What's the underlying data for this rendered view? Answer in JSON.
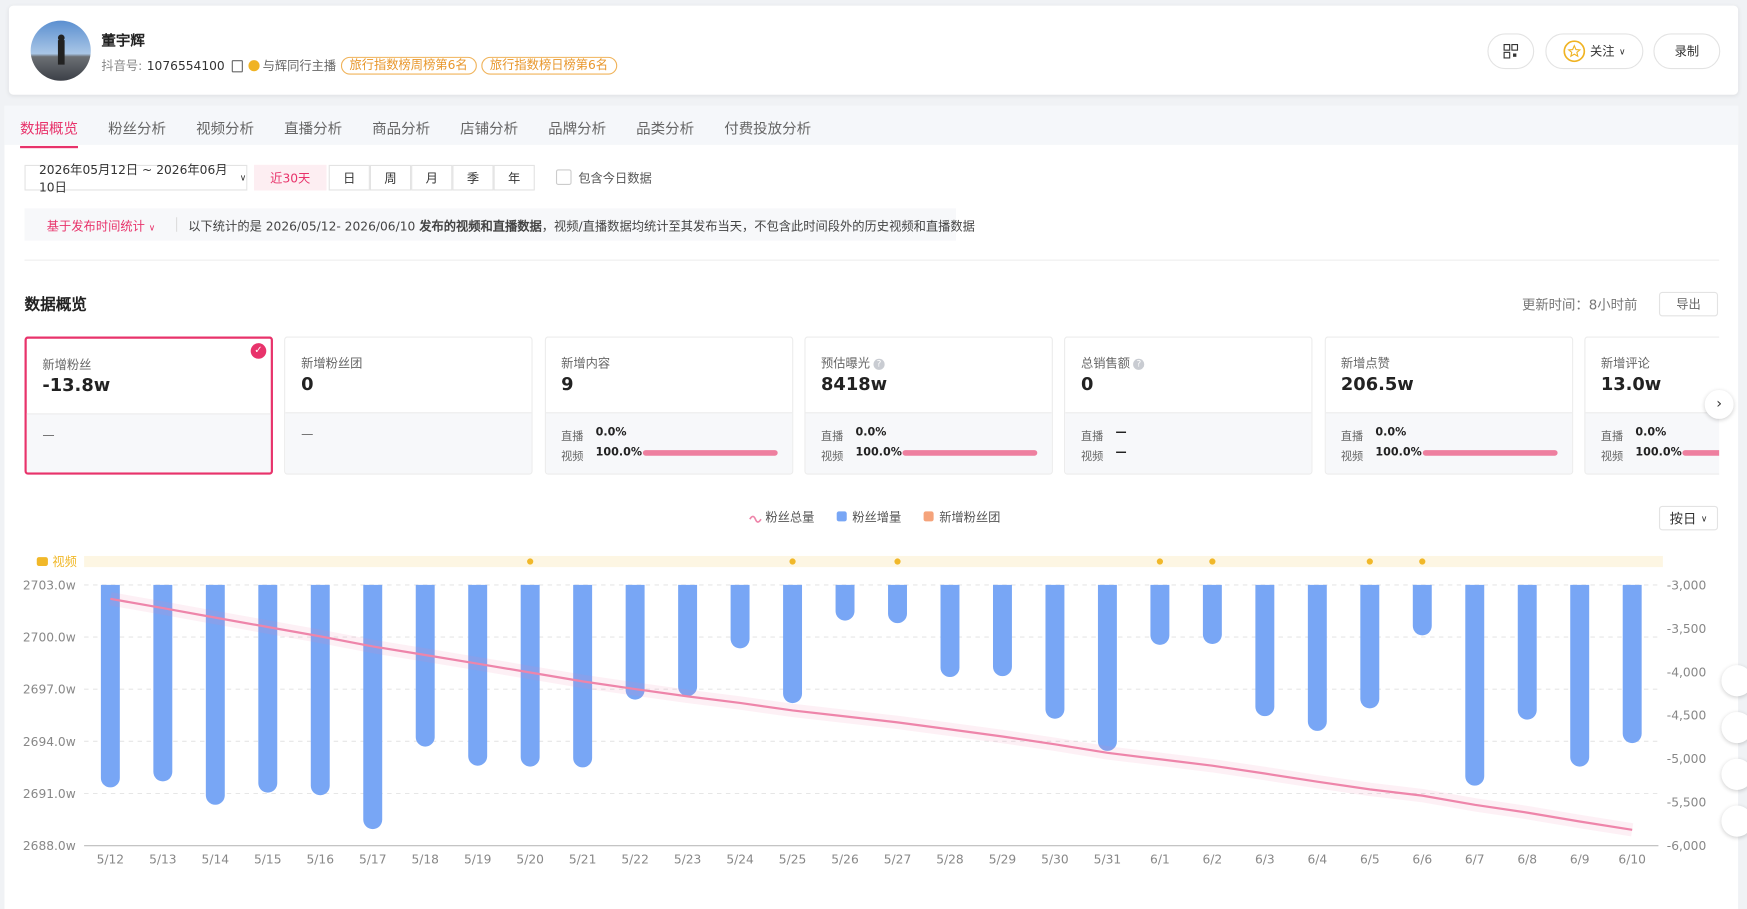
{
  "profile": {
    "name": "董宇辉",
    "id_label": "抖音号:",
    "id": "1076554100",
    "relation": "与辉同行主播",
    "badges": [
      "旅行指数榜周榜第6名",
      "旅行指数榜日榜第6名"
    ]
  },
  "actions": {
    "follow": "关注",
    "record": "录制"
  },
  "tabs": [
    "数据概览",
    "粉丝分析",
    "视频分析",
    "直播分析",
    "商品分析",
    "店铺分析",
    "品牌分析",
    "品类分析",
    "付费投放分析"
  ],
  "filters": {
    "date_range": "2026年05月12日 ~ 2026年06月10日",
    "presets": [
      "近30天",
      "日",
      "周",
      "月",
      "季",
      "年"
    ],
    "include_today": "包含今日数据"
  },
  "notice": {
    "mode": "基于发布时间统计",
    "text_pre": "以下统计的是  2026/05/12- 2026/06/10 ",
    "text_bold": "发布的视频和直播数据",
    "text_post": "，视频/直播数据均统计至其发布当天，不包含此时间段外的历史视频和直播数据"
  },
  "section": {
    "title": "数据概览",
    "update_label": "更新时间：8小时前",
    "export": "导出"
  },
  "cards": [
    {
      "label": "新增粉丝",
      "value": "-13.8w",
      "detail": "—"
    },
    {
      "label": "新增粉丝团",
      "value": "0",
      "detail": "—"
    },
    {
      "label": "新增内容",
      "value": "9",
      "rows": [
        {
          "label": "直播",
          "value": 0,
          "value_label": "0.0%"
        },
        {
          "label": "视频",
          "value": 100,
          "value_label": "100.0%"
        }
      ]
    },
    {
      "label": "预估曝光",
      "value": "8418w",
      "has_help": true,
      "rows": [
        {
          "label": "直播",
          "value": 0,
          "value_label": "0.0%"
        },
        {
          "label": "视频",
          "value": 100,
          "value_label": "100.0%"
        }
      ]
    },
    {
      "label": "总销售额",
      "value": "0",
      "has_help": true,
      "rows": [
        {
          "label": "直播",
          "value": null,
          "value_label": "—"
        },
        {
          "label": "视频",
          "value": null,
          "value_label": "—"
        }
      ]
    },
    {
      "label": "新增点赞",
      "value": "206.5w",
      "rows": [
        {
          "label": "直播",
          "value": 0,
          "value_label": "0.0%"
        },
        {
          "label": "视频",
          "value": 100,
          "value_label": "100.0%"
        }
      ]
    },
    {
      "label": "新增评论",
      "value": "13.0w",
      "rows": [
        {
          "label": "直播",
          "value": 0,
          "value_label": "0.0%"
        },
        {
          "label": "视频",
          "value": 100,
          "value_label": "100.0%"
        }
      ]
    }
  ],
  "chart_data": {
    "type": "bar_line",
    "granularity": "按日",
    "categories": [
      "5/12",
      "5/13",
      "5/14",
      "5/15",
      "5/16",
      "5/17",
      "5/18",
      "5/19",
      "5/20",
      "5/21",
      "5/22",
      "5/23",
      "5/24",
      "5/25",
      "5/26",
      "5/27",
      "5/28",
      "5/29",
      "5/30",
      "5/31",
      "6/1",
      "6/2",
      "6/3",
      "6/4",
      "6/5",
      "6/6",
      "6/7",
      "6/8",
      "6/9",
      "6/10"
    ],
    "series": [
      {
        "name": "粉丝总量",
        "type": "line",
        "color": "#ee85aa",
        "values": [
          2702.2,
          2701.67,
          2701.12,
          2700.58,
          2700.04,
          2699.46,
          2698.97,
          2698.47,
          2697.96,
          2697.45,
          2697.01,
          2696.59,
          2696.21,
          2695.78,
          2695.44,
          2695.09,
          2694.69,
          2694.28,
          2693.83,
          2693.34,
          2692.97,
          2692.6,
          2692.15,
          2691.68,
          2691.24,
          2690.88,
          2690.35,
          2689.9,
          2689.39,
          2688.91
        ]
      },
      {
        "name": "粉丝增量",
        "type": "bar",
        "axis": "y2",
        "color": "#78a6f5",
        "values": [
          -5330,
          -5260,
          -5530,
          -5390,
          -5420,
          -5810,
          -4860,
          -5080,
          -5090,
          -5100,
          -4320,
          -4280,
          -3730,
          -4360,
          -3410,
          -3440,
          -4060,
          -4050,
          -4540,
          -4910,
          -3690,
          -3680,
          -4510,
          -4680,
          -4420,
          -3580,
          -5310,
          -4550,
          -5090,
          -4820
        ]
      },
      {
        "name": "新增粉丝团",
        "type": "bar",
        "color": "#f5a37b"
      }
    ],
    "ylim": [
      2688,
      2703
    ],
    "yticks": [
      {
        "value": 2688,
        "label": "2688.0w"
      },
      {
        "value": 2691,
        "label": "2691.0w"
      },
      {
        "value": 2694,
        "label": "2694.0w"
      },
      {
        "value": 2697,
        "label": "2697.0w"
      },
      {
        "value": 2700,
        "label": "2700.0w"
      },
      {
        "value": 2703,
        "label": "2703.0w"
      }
    ],
    "y2lim": [
      -6000,
      -3000
    ],
    "y2ticks": [
      {
        "value": -6000,
        "label": "-6,000"
      },
      {
        "value": -5500,
        "label": "-5,500"
      },
      {
        "value": -5000,
        "label": "-5,000"
      },
      {
        "value": -4500,
        "label": "-4,500"
      },
      {
        "value": -4000,
        "label": "-4,000"
      },
      {
        "value": -3500,
        "label": "-3,500"
      },
      {
        "value": -3000,
        "label": "-3,000"
      }
    ],
    "grid": true,
    "video_track": {
      "label": "视频",
      "color": "#f1b829",
      "dates": [
        "5/20",
        "5/25",
        "5/27",
        "6/1",
        "6/2",
        "6/5",
        "6/6"
      ]
    }
  }
}
